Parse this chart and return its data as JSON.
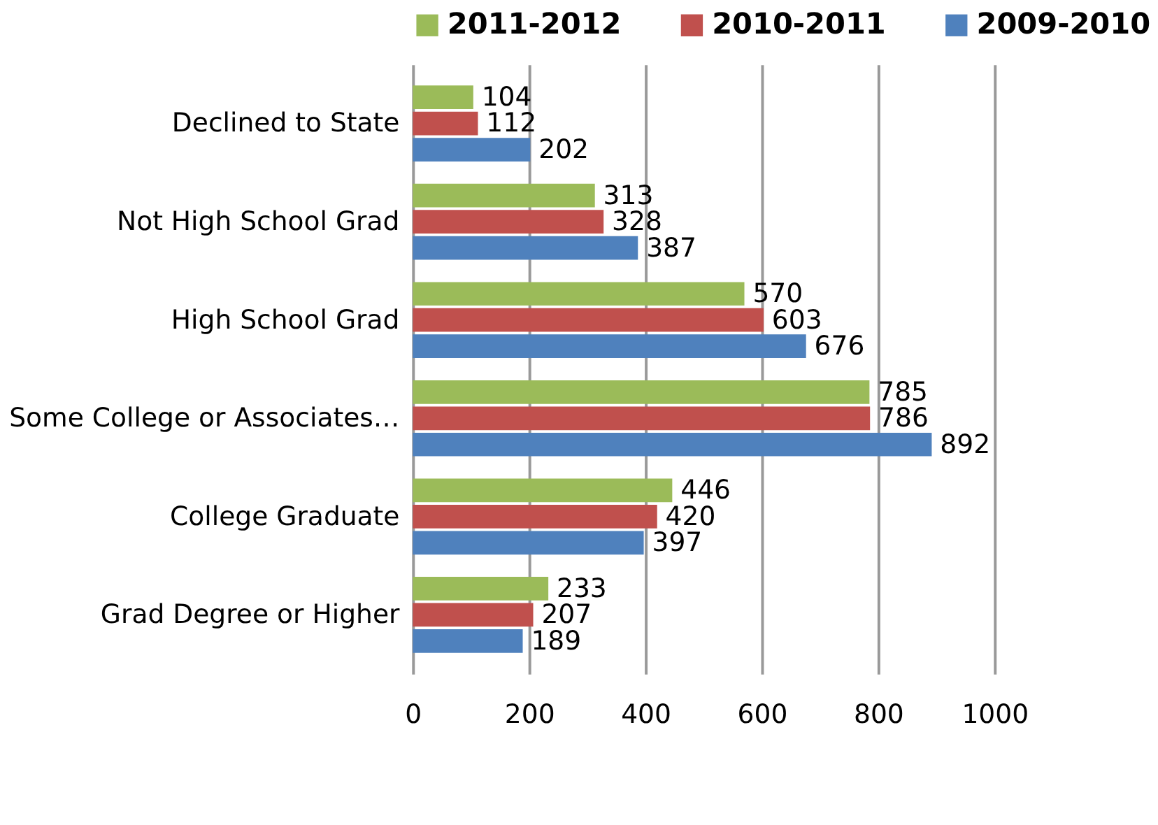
{
  "chart_data": {
    "type": "bar",
    "orientation": "horizontal",
    "categories": [
      "Declined to State",
      "Not High School Grad",
      "High School Grad",
      "Some College or Associates…",
      "College Graduate",
      "Grad Degree or Higher"
    ],
    "series": [
      {
        "name": "2011-2012",
        "color": "#9bbb59",
        "values": [
          104,
          313,
          570,
          785,
          446,
          233
        ]
      },
      {
        "name": "2010-2011",
        "color": "#c0504d",
        "values": [
          112,
          328,
          603,
          786,
          420,
          207
        ]
      },
      {
        "name": "2009-2010",
        "color": "#4f81bd",
        "values": [
          202,
          387,
          676,
          892,
          397,
          189
        ]
      }
    ],
    "xlim": [
      0,
      1000
    ],
    "xticks": [
      0,
      200,
      400,
      600,
      800,
      1000
    ],
    "grid": "x",
    "legend": "top",
    "data_labels": true
  }
}
